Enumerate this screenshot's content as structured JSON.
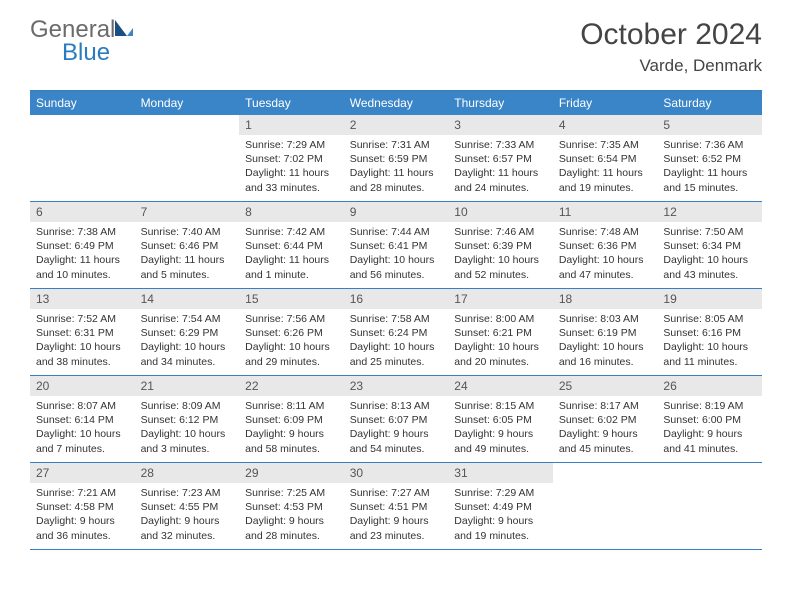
{
  "logo": {
    "general": "General",
    "blue": "Blue"
  },
  "title": "October 2024",
  "location": "Varde, Denmark",
  "colors": {
    "header_bg": "#3a85c7",
    "border": "#3a7fbf",
    "daynum_bg": "#e8e8e8",
    "text": "#333333",
    "logo_gray": "#6b6b6b",
    "logo_blue": "#2b7bbf"
  },
  "day_headers": [
    "Sunday",
    "Monday",
    "Tuesday",
    "Wednesday",
    "Thursday",
    "Friday",
    "Saturday"
  ],
  "weeks": [
    [
      {
        "n": "",
        "lines": []
      },
      {
        "n": "",
        "lines": []
      },
      {
        "n": "1",
        "lines": [
          "Sunrise: 7:29 AM",
          "Sunset: 7:02 PM",
          "Daylight: 11 hours",
          "and 33 minutes."
        ]
      },
      {
        "n": "2",
        "lines": [
          "Sunrise: 7:31 AM",
          "Sunset: 6:59 PM",
          "Daylight: 11 hours",
          "and 28 minutes."
        ]
      },
      {
        "n": "3",
        "lines": [
          "Sunrise: 7:33 AM",
          "Sunset: 6:57 PM",
          "Daylight: 11 hours",
          "and 24 minutes."
        ]
      },
      {
        "n": "4",
        "lines": [
          "Sunrise: 7:35 AM",
          "Sunset: 6:54 PM",
          "Daylight: 11 hours",
          "and 19 minutes."
        ]
      },
      {
        "n": "5",
        "lines": [
          "Sunrise: 7:36 AM",
          "Sunset: 6:52 PM",
          "Daylight: 11 hours",
          "and 15 minutes."
        ]
      }
    ],
    [
      {
        "n": "6",
        "lines": [
          "Sunrise: 7:38 AM",
          "Sunset: 6:49 PM",
          "Daylight: 11 hours",
          "and 10 minutes."
        ]
      },
      {
        "n": "7",
        "lines": [
          "Sunrise: 7:40 AM",
          "Sunset: 6:46 PM",
          "Daylight: 11 hours",
          "and 5 minutes."
        ]
      },
      {
        "n": "8",
        "lines": [
          "Sunrise: 7:42 AM",
          "Sunset: 6:44 PM",
          "Daylight: 11 hours",
          "and 1 minute."
        ]
      },
      {
        "n": "9",
        "lines": [
          "Sunrise: 7:44 AM",
          "Sunset: 6:41 PM",
          "Daylight: 10 hours",
          "and 56 minutes."
        ]
      },
      {
        "n": "10",
        "lines": [
          "Sunrise: 7:46 AM",
          "Sunset: 6:39 PM",
          "Daylight: 10 hours",
          "and 52 minutes."
        ]
      },
      {
        "n": "11",
        "lines": [
          "Sunrise: 7:48 AM",
          "Sunset: 6:36 PM",
          "Daylight: 10 hours",
          "and 47 minutes."
        ]
      },
      {
        "n": "12",
        "lines": [
          "Sunrise: 7:50 AM",
          "Sunset: 6:34 PM",
          "Daylight: 10 hours",
          "and 43 minutes."
        ]
      }
    ],
    [
      {
        "n": "13",
        "lines": [
          "Sunrise: 7:52 AM",
          "Sunset: 6:31 PM",
          "Daylight: 10 hours",
          "and 38 minutes."
        ]
      },
      {
        "n": "14",
        "lines": [
          "Sunrise: 7:54 AM",
          "Sunset: 6:29 PM",
          "Daylight: 10 hours",
          "and 34 minutes."
        ]
      },
      {
        "n": "15",
        "lines": [
          "Sunrise: 7:56 AM",
          "Sunset: 6:26 PM",
          "Daylight: 10 hours",
          "and 29 minutes."
        ]
      },
      {
        "n": "16",
        "lines": [
          "Sunrise: 7:58 AM",
          "Sunset: 6:24 PM",
          "Daylight: 10 hours",
          "and 25 minutes."
        ]
      },
      {
        "n": "17",
        "lines": [
          "Sunrise: 8:00 AM",
          "Sunset: 6:21 PM",
          "Daylight: 10 hours",
          "and 20 minutes."
        ]
      },
      {
        "n": "18",
        "lines": [
          "Sunrise: 8:03 AM",
          "Sunset: 6:19 PM",
          "Daylight: 10 hours",
          "and 16 minutes."
        ]
      },
      {
        "n": "19",
        "lines": [
          "Sunrise: 8:05 AM",
          "Sunset: 6:16 PM",
          "Daylight: 10 hours",
          "and 11 minutes."
        ]
      }
    ],
    [
      {
        "n": "20",
        "lines": [
          "Sunrise: 8:07 AM",
          "Sunset: 6:14 PM",
          "Daylight: 10 hours",
          "and 7 minutes."
        ]
      },
      {
        "n": "21",
        "lines": [
          "Sunrise: 8:09 AM",
          "Sunset: 6:12 PM",
          "Daylight: 10 hours",
          "and 3 minutes."
        ]
      },
      {
        "n": "22",
        "lines": [
          "Sunrise: 8:11 AM",
          "Sunset: 6:09 PM",
          "Daylight: 9 hours",
          "and 58 minutes."
        ]
      },
      {
        "n": "23",
        "lines": [
          "Sunrise: 8:13 AM",
          "Sunset: 6:07 PM",
          "Daylight: 9 hours",
          "and 54 minutes."
        ]
      },
      {
        "n": "24",
        "lines": [
          "Sunrise: 8:15 AM",
          "Sunset: 6:05 PM",
          "Daylight: 9 hours",
          "and 49 minutes."
        ]
      },
      {
        "n": "25",
        "lines": [
          "Sunrise: 8:17 AM",
          "Sunset: 6:02 PM",
          "Daylight: 9 hours",
          "and 45 minutes."
        ]
      },
      {
        "n": "26",
        "lines": [
          "Sunrise: 8:19 AM",
          "Sunset: 6:00 PM",
          "Daylight: 9 hours",
          "and 41 minutes."
        ]
      }
    ],
    [
      {
        "n": "27",
        "lines": [
          "Sunrise: 7:21 AM",
          "Sunset: 4:58 PM",
          "Daylight: 9 hours",
          "and 36 minutes."
        ]
      },
      {
        "n": "28",
        "lines": [
          "Sunrise: 7:23 AM",
          "Sunset: 4:55 PM",
          "Daylight: 9 hours",
          "and 32 minutes."
        ]
      },
      {
        "n": "29",
        "lines": [
          "Sunrise: 7:25 AM",
          "Sunset: 4:53 PM",
          "Daylight: 9 hours",
          "and 28 minutes."
        ]
      },
      {
        "n": "30",
        "lines": [
          "Sunrise: 7:27 AM",
          "Sunset: 4:51 PM",
          "Daylight: 9 hours",
          "and 23 minutes."
        ]
      },
      {
        "n": "31",
        "lines": [
          "Sunrise: 7:29 AM",
          "Sunset: 4:49 PM",
          "Daylight: 9 hours",
          "and 19 minutes."
        ]
      },
      {
        "n": "",
        "lines": []
      },
      {
        "n": "",
        "lines": []
      }
    ]
  ]
}
